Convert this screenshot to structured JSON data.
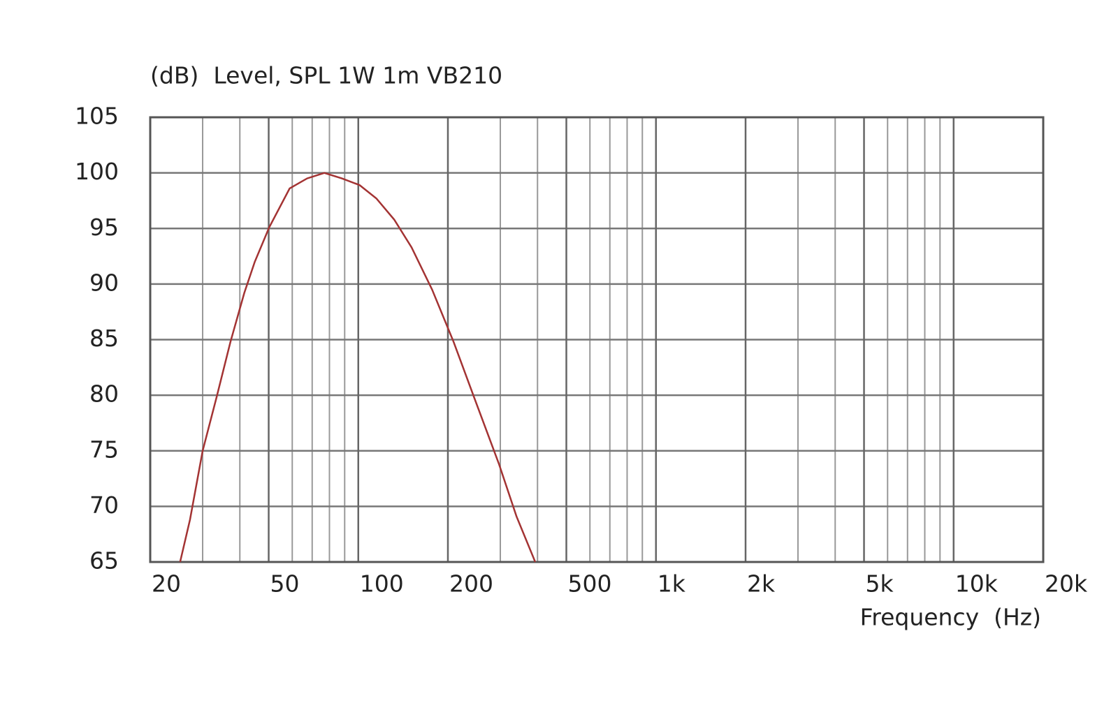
{
  "chart_data": {
    "type": "line",
    "title": "(dB)  Level, SPL 1W 1m VB210",
    "x_label": "Frequency  (Hz)",
    "x_scale": "log",
    "grid": true,
    "xlim": [
      20,
      20000
    ],
    "ylim": [
      65,
      105
    ],
    "xticks": [
      20,
      50,
      100,
      200,
      500,
      {
        "value": 1000,
        "label": "1k"
      },
      {
        "value": 2000,
        "label": "2k"
      },
      {
        "value": 5000,
        "label": "5k"
      },
      {
        "value": 10000,
        "label": "10k"
      },
      {
        "value": 20000,
        "label": "20k"
      }
    ],
    "xminorticks": [
      30,
      40,
      60,
      70,
      80,
      90,
      300,
      400,
      600,
      700,
      800,
      900,
      3000,
      4000,
      6000,
      7000,
      8000,
      9000
    ],
    "yticks": [
      65,
      70,
      75,
      80,
      85,
      90,
      95,
      100,
      105
    ],
    "x": [
      25.2,
      27.2,
      30,
      33.4,
      37.2,
      41.4,
      44.9,
      50.2,
      58.8,
      67.3,
      76.9,
      88.1,
      101,
      115,
      132,
      151,
      177,
      209,
      245,
      297,
      340,
      393
    ],
    "series": [
      {
        "name": "Level",
        "color": "#a33333",
        "values": [
          65,
          68.8,
          75,
          79.8,
          84.8,
          89.2,
          92,
          95.1,
          98.6,
          99.5,
          100,
          99.5,
          98.9,
          97.7,
          95.8,
          93.3,
          89.5,
          84.8,
          79.8,
          73.8,
          69.1,
          65
        ]
      }
    ]
  }
}
